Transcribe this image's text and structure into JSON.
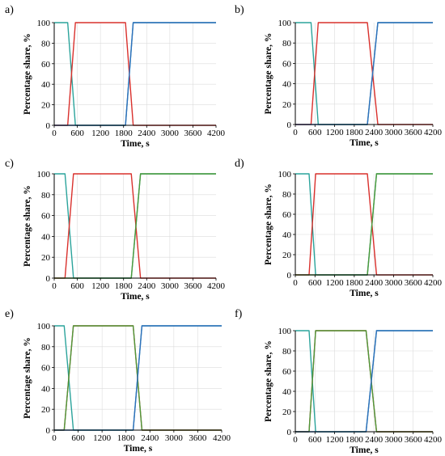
{
  "figure": {
    "shared": {
      "xlabel": "Time, s",
      "ylabel": "Percentage share, %",
      "x_ticks": [
        0,
        600,
        1200,
        1800,
        2400,
        3000,
        3600,
        4200
      ],
      "y_ticks": [
        0,
        20,
        40,
        60,
        80,
        100
      ],
      "xlim": [
        0,
        4200
      ],
      "ylim": [
        0,
        100
      ],
      "grid": true,
      "colors": {
        "teal": "#2aa39b",
        "red": "#d9302c",
        "blue": "#2f6fbd",
        "green": "#4c9a3a"
      }
    }
  },
  "chart_data": [
    {
      "panel_label": "a)",
      "type": "line",
      "xlabel": "Time, s",
      "ylabel": "Percentage share, %",
      "xlim": [
        0,
        4200
      ],
      "ylim": [
        0,
        100
      ],
      "x_ticks": [
        0,
        600,
        1200,
        1800,
        2400,
        3000,
        3600,
        4200
      ],
      "y_ticks": [
        0,
        20,
        40,
        60,
        80,
        100
      ],
      "series": [
        {
          "color": "#2aa39b",
          "points": [
            [
              0,
              100
            ],
            [
              350,
              100
            ],
            [
              550,
              0
            ],
            [
              1850,
              0
            ],
            [
              2050,
              100
            ],
            [
              4200,
              100
            ]
          ]
        },
        {
          "color": "#d9302c",
          "points": [
            [
              0,
              0
            ],
            [
              350,
              0
            ],
            [
              550,
              100
            ],
            [
              1850,
              100
            ],
            [
              2050,
              0
            ],
            [
              4200,
              0
            ]
          ]
        },
        {
          "color": "#2f6fbd",
          "points": [
            [
              0,
              0
            ],
            [
              1850,
              0
            ],
            [
              2050,
              100
            ],
            [
              4200,
              100
            ]
          ]
        }
      ]
    },
    {
      "panel_label": "b)",
      "type": "line",
      "xlabel": "Time, s",
      "ylabel": "Percentage share, %",
      "xlim": [
        0,
        4200
      ],
      "ylim": [
        0,
        100
      ],
      "x_ticks": [
        0,
        600,
        1200,
        1800,
        2400,
        3000,
        3600,
        4200
      ],
      "y_ticks": [
        0,
        20,
        40,
        60,
        80,
        100
      ],
      "series": [
        {
          "color": "#2aa39b",
          "points": [
            [
              0,
              100
            ],
            [
              480,
              100
            ],
            [
              700,
              0
            ],
            [
              2200,
              0
            ],
            [
              2520,
              100
            ],
            [
              4200,
              100
            ]
          ]
        },
        {
          "color": "#d9302c",
          "points": [
            [
              0,
              0
            ],
            [
              480,
              0
            ],
            [
              700,
              100
            ],
            [
              2200,
              100
            ],
            [
              2520,
              0
            ],
            [
              4200,
              0
            ]
          ]
        },
        {
          "color": "#2f6fbd",
          "points": [
            [
              0,
              0
            ],
            [
              2200,
              0
            ],
            [
              2520,
              100
            ],
            [
              4200,
              100
            ]
          ]
        }
      ]
    },
    {
      "panel_label": "c)",
      "type": "line",
      "xlabel": "Time, s",
      "ylabel": "Percentage share, %",
      "xlim": [
        0,
        4200
      ],
      "ylim": [
        0,
        100
      ],
      "x_ticks": [
        0,
        600,
        1200,
        1800,
        2400,
        3000,
        3600,
        4200
      ],
      "y_ticks": [
        0,
        20,
        40,
        60,
        80,
        100
      ],
      "series": [
        {
          "color": "#2aa39b",
          "points": [
            [
              0,
              100
            ],
            [
              280,
              100
            ],
            [
              500,
              0
            ],
            [
              2000,
              0
            ],
            [
              2240,
              100
            ],
            [
              4200,
              100
            ]
          ]
        },
        {
          "color": "#d9302c",
          "points": [
            [
              0,
              0
            ],
            [
              280,
              0
            ],
            [
              500,
              100
            ],
            [
              2000,
              100
            ],
            [
              2240,
              0
            ],
            [
              4200,
              0
            ]
          ]
        },
        {
          "color": "#4c9a3a",
          "points": [
            [
              0,
              0
            ],
            [
              2000,
              0
            ],
            [
              2240,
              100
            ],
            [
              4200,
              100
            ]
          ]
        }
      ]
    },
    {
      "panel_label": "d)",
      "type": "line",
      "xlabel": "Time, s",
      "ylabel": "Percentage share, %",
      "xlim": [
        0,
        4200
      ],
      "ylim": [
        0,
        100
      ],
      "x_ticks": [
        0,
        600,
        1200,
        1800,
        2400,
        3000,
        3600,
        4200
      ],
      "y_ticks": [
        0,
        20,
        40,
        60,
        80,
        100
      ],
      "series": [
        {
          "color": "#2aa39b",
          "points": [
            [
              0,
              100
            ],
            [
              420,
              100
            ],
            [
              620,
              0
            ],
            [
              2200,
              0
            ],
            [
              2480,
              100
            ],
            [
              4200,
              100
            ]
          ]
        },
        {
          "color": "#d9302c",
          "points": [
            [
              0,
              0
            ],
            [
              420,
              0
            ],
            [
              620,
              100
            ],
            [
              2200,
              100
            ],
            [
              2480,
              0
            ],
            [
              4200,
              0
            ]
          ]
        },
        {
          "color": "#4c9a3a",
          "points": [
            [
              0,
              0
            ],
            [
              2200,
              0
            ],
            [
              2480,
              100
            ],
            [
              4200,
              100
            ]
          ]
        }
      ]
    },
    {
      "panel_label": "e)",
      "type": "line",
      "xlabel": "Time, s",
      "ylabel": "Percentage share, %",
      "xlim": [
        0,
        4200
      ],
      "ylim": [
        0,
        100
      ],
      "x_ticks": [
        0,
        600,
        1200,
        1800,
        2400,
        3000,
        3600,
        4200
      ],
      "y_ticks": [
        0,
        20,
        40,
        60,
        80,
        100
      ],
      "series": [
        {
          "color": "#2aa39b",
          "points": [
            [
              0,
              100
            ],
            [
              250,
              100
            ],
            [
              480,
              0
            ],
            [
              1980,
              0
            ],
            [
              2200,
              100
            ],
            [
              4200,
              100
            ]
          ]
        },
        {
          "color": "#d9302c",
          "points": [
            [
              0,
              0
            ],
            [
              250,
              0
            ],
            [
              480,
              100
            ],
            [
              1980,
              100
            ],
            [
              2200,
              0
            ],
            [
              4200,
              0
            ]
          ]
        },
        {
          "color": "#4c9a3a",
          "points": [
            [
              0,
              0
            ],
            [
              250,
              0
            ],
            [
              480,
              100
            ],
            [
              1980,
              100
            ],
            [
              2200,
              0
            ],
            [
              4200,
              0
            ]
          ]
        },
        {
          "color": "#2f6fbd",
          "points": [
            [
              0,
              0
            ],
            [
              1980,
              0
            ],
            [
              2200,
              100
            ],
            [
              4200,
              100
            ]
          ]
        }
      ]
    },
    {
      "panel_label": "f)",
      "type": "line",
      "xlabel": "Time, s",
      "ylabel": "Percentage share, %",
      "xlim": [
        0,
        4200
      ],
      "ylim": [
        0,
        100
      ],
      "x_ticks": [
        0,
        600,
        1200,
        1800,
        2400,
        3000,
        3600,
        4200
      ],
      "y_ticks": [
        0,
        20,
        40,
        60,
        80,
        100
      ],
      "series": [
        {
          "color": "#2aa39b",
          "points": [
            [
              0,
              100
            ],
            [
              420,
              100
            ],
            [
              620,
              0
            ],
            [
              2160,
              0
            ],
            [
              2480,
              100
            ],
            [
              4200,
              100
            ]
          ]
        },
        {
          "color": "#d9302c",
          "points": [
            [
              0,
              0
            ],
            [
              420,
              0
            ],
            [
              620,
              100
            ],
            [
              2160,
              100
            ],
            [
              2480,
              0
            ],
            [
              4200,
              0
            ]
          ]
        },
        {
          "color": "#4c9a3a",
          "points": [
            [
              0,
              0
            ],
            [
              420,
              0
            ],
            [
              620,
              100
            ],
            [
              2160,
              100
            ],
            [
              2480,
              0
            ],
            [
              4200,
              0
            ]
          ]
        },
        {
          "color": "#2f6fbd",
          "points": [
            [
              0,
              0
            ],
            [
              2160,
              0
            ],
            [
              2480,
              100
            ],
            [
              4200,
              100
            ]
          ]
        }
      ]
    }
  ]
}
